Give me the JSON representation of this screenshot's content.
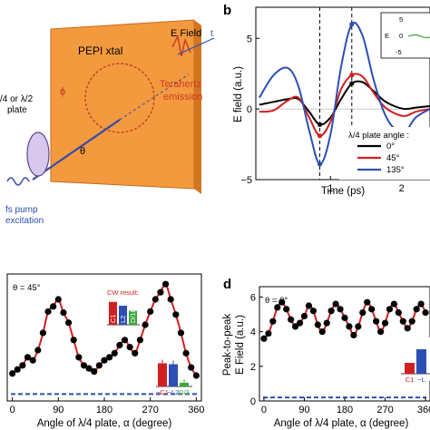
{
  "panel_a": {
    "crystal_label": "PEPI xtal",
    "efield_label": "E Field",
    "t_label": "t",
    "thz_label_1": "Terahertz",
    "thz_label_2": "emission",
    "phi_label": "ϕ",
    "theta_label": "θ",
    "plate_label_1": "/4 or λ/2",
    "plate_label_2": "plate",
    "pump_label_1": "fs pump",
    "pump_label_2": "excitation",
    "colors": {
      "crystal": "#f59a3c",
      "beam": "#3a4aa8",
      "thz": "#d23a2a"
    }
  },
  "panel_b": {
    "letter": "b",
    "legend_title": "λ/4 plate angle :",
    "inset_ylabel": "E",
    "inset_ticks": [
      "5",
      "0",
      "-5"
    ]
  },
  "panel_c": {
    "theta_text": "θ = 45°",
    "cw_title": "CW result:",
    "cw_bars": [
      "C1",
      "L2",
      "D/100"
    ],
    "pulse_bars": [
      "−C1",
      "−L2",
      "D/3"
    ]
  },
  "panel_d": {
    "letter": "d",
    "theta_text": "θ = 0°",
    "inset_bars": [
      "C1",
      "−L"
    ]
  },
  "chart_data": [
    {
      "type": "line",
      "panel": "b",
      "xlabel": "Time (ps)",
      "ylabel": "E field (a.u.)",
      "xlim": [
        -0.05,
        2.4
      ],
      "ylim": [
        -5,
        7.2
      ],
      "xticks": [
        "1",
        "2"
      ],
      "yticks": [
        "−5",
        "0",
        "5"
      ],
      "dashed_lines_x": [
        0.85,
        1.3
      ],
      "series": [
        {
          "name": "0°",
          "color": "#000000",
          "x": [
            0,
            0.2,
            0.4,
            0.55,
            0.7,
            0.85,
            1.0,
            1.15,
            1.3,
            1.45,
            1.6,
            1.75,
            1.9,
            2.05,
            2.2,
            2.4
          ],
          "y": [
            0.3,
            0.5,
            0.7,
            0.7,
            -0.2,
            -1.1,
            -0.6,
            0.7,
            1.8,
            1.9,
            1.3,
            0.6,
            0.2,
            0.0,
            0.1,
            0.2
          ]
        },
        {
          "name": "45°",
          "color": "#d21f1f",
          "x": [
            0,
            0.2,
            0.4,
            0.55,
            0.7,
            0.85,
            1.0,
            1.15,
            1.3,
            1.45,
            1.6,
            1.75,
            1.9,
            2.05,
            2.2,
            2.4
          ],
          "y": [
            -0.2,
            -0.1,
            0.6,
            0.8,
            -0.6,
            -1.9,
            -0.9,
            1.4,
            2.4,
            2.3,
            1.2,
            0.2,
            -0.3,
            -0.5,
            -0.2,
            0.0
          ]
        },
        {
          "name": "135°",
          "color": "#2b4fb3",
          "x": [
            0,
            0.2,
            0.4,
            0.55,
            0.7,
            0.85,
            1.0,
            1.15,
            1.3,
            1.45,
            1.6,
            1.75,
            1.9,
            2.05,
            2.2,
            2.4
          ],
          "y": [
            0.8,
            2.4,
            2.9,
            1.6,
            -1.5,
            -3.9,
            -1.8,
            3.0,
            6.0,
            5.2,
            2.2,
            -0.2,
            -1.4,
            -1.6,
            -0.6,
            0.0
          ]
        }
      ],
      "legend_labels": [
        "0°",
        "45°",
        "135°"
      ],
      "legend": "bottom-right"
    },
    {
      "type": "scatter",
      "panel": "c",
      "xlabel": "Angle of  λ/4 plate,  α (degree)",
      "ylabel": "",
      "xlim": [
        -10,
        370
      ],
      "ylim": [
        -0.05,
        1.2
      ],
      "xticks": [
        "0",
        "90",
        "180",
        "270",
        "360"
      ],
      "points_x": [
        0,
        10,
        20,
        30,
        40,
        50,
        60,
        70,
        80,
        90,
        100,
        110,
        120,
        130,
        140,
        150,
        160,
        170,
        180,
        190,
        200,
        210,
        220,
        230,
        240,
        250,
        260,
        270,
        280,
        290,
        300,
        310,
        320,
        330,
        340,
        350,
        360
      ],
      "points_y": [
        0.22,
        0.26,
        0.3,
        0.38,
        0.35,
        0.45,
        0.62,
        0.83,
        0.88,
        0.95,
        0.82,
        0.72,
        0.55,
        0.38,
        0.3,
        0.27,
        0.24,
        0.3,
        0.35,
        0.38,
        0.42,
        0.5,
        0.55,
        0.48,
        0.42,
        0.55,
        0.7,
        0.83,
        0.95,
        1.02,
        1.1,
        0.95,
        0.8,
        0.62,
        0.42,
        0.28,
        0.2
      ],
      "fit_color": "#d21f1f",
      "baseline_dashed_y": 0.0,
      "cw_bar_values": [
        0.9,
        0.75,
        0.55
      ],
      "cw_bar_colors": [
        "#d21f1f",
        "#2b4fb3",
        "#3aa83a"
      ],
      "pulse_bar_values": [
        0.75,
        0.72,
        0.12
      ],
      "pulse_bar_colors": [
        "#d21f1f",
        "#2b4fb3",
        "#3aa83a"
      ]
    },
    {
      "type": "scatter",
      "panel": "d",
      "xlabel": "Angle of  λ/4 plate,  α (degree)",
      "ylabel": "Peak-to-peak\nE Field (a.u.)",
      "xlim": [
        -10,
        370
      ],
      "ylim": [
        0,
        6.6
      ],
      "xticks": [
        "0",
        "90",
        "180",
        "270",
        "360"
      ],
      "yticks": [
        "0",
        "2",
        "4",
        "6"
      ],
      "points_x": [
        0,
        10,
        20,
        30,
        40,
        50,
        60,
        70,
        80,
        90,
        100,
        110,
        120,
        130,
        140,
        150,
        160,
        170,
        180,
        190,
        200,
        210,
        220,
        230,
        240,
        250,
        260,
        270,
        280,
        290,
        300,
        310,
        320,
        330,
        340,
        350,
        360
      ],
      "points_y": [
        3.6,
        3.9,
        4.6,
        5.4,
        5.7,
        5.3,
        4.7,
        4.3,
        4.5,
        4.9,
        5.5,
        5.2,
        4.4,
        4.0,
        4.5,
        5.2,
        5.6,
        5.3,
        4.8,
        4.3,
        3.8,
        4.3,
        5.1,
        5.7,
        5.3,
        4.6,
        4.0,
        4.5,
        5.3,
        5.6,
        5.1,
        4.6,
        4.2,
        4.6,
        5.3,
        5.6,
        5.1
      ],
      "fit_color": "#d21f1f",
      "baseline_dashed_y": 0.2,
      "inset_bar_values": [
        0.4,
        0.9
      ],
      "inset_bar_colors": [
        "#d21f1f",
        "#2b4fb3"
      ]
    }
  ]
}
